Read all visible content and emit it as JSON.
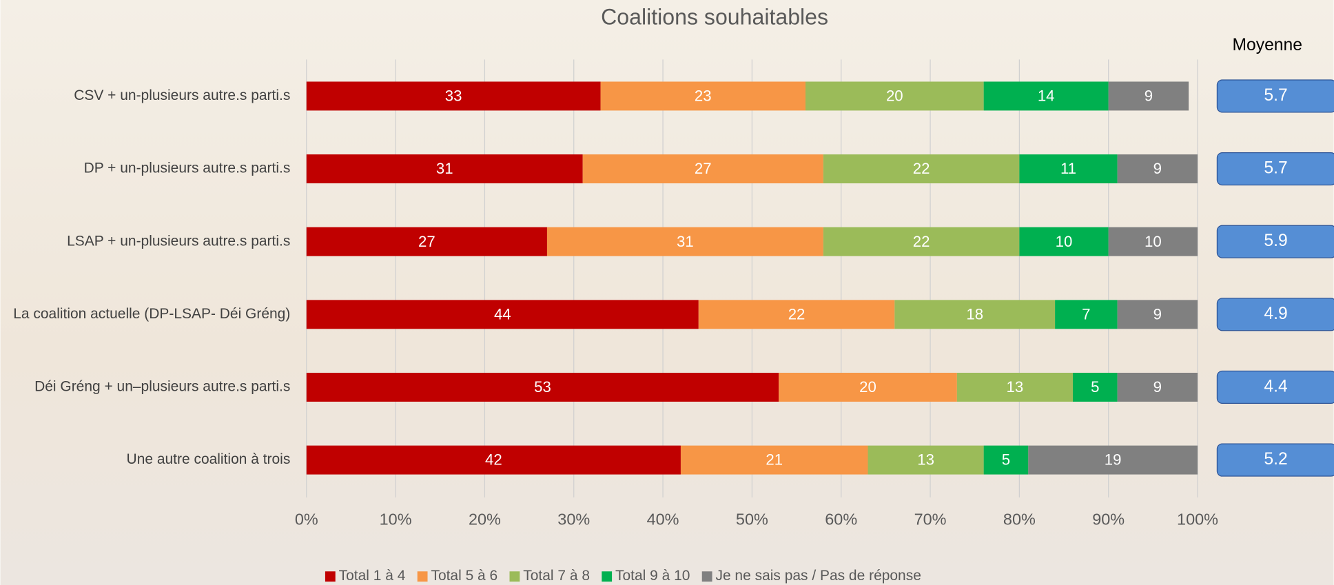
{
  "chart_data": {
    "type": "stacked-bar-horizontal",
    "title": "Coalitions souhaitables",
    "categories": [
      "CSV + un-plusieurs autre.s parti.s",
      "DP + un-plusieurs autre.s parti.s",
      "LSAP + un-plusieurs autre.s parti.s",
      "La coalition actuelle (DP-LSAP- Déi Gréng)",
      "Déi Gréng + un–plusieurs autre.s parti.s",
      "Une autre coalition à trois"
    ],
    "series": [
      {
        "name": "Total 1 à 4",
        "color": "#c00000",
        "values": [
          33,
          31,
          27,
          44,
          53,
          42
        ]
      },
      {
        "name": "Total 5 à 6",
        "color": "#f79646",
        "values": [
          23,
          27,
          31,
          22,
          20,
          21
        ]
      },
      {
        "name": "Total 7 à 8",
        "color": "#9bbb59",
        "values": [
          20,
          22,
          22,
          18,
          13,
          13
        ]
      },
      {
        "name": "Total 9 à 10",
        "color": "#00b050",
        "values": [
          14,
          11,
          10,
          7,
          5,
          5
        ]
      },
      {
        "name": "Je ne sais pas / Pas de réponse",
        "color": "#808080",
        "values": [
          9,
          9,
          10,
          9,
          9,
          19
        ]
      }
    ],
    "xlim": [
      0,
      100
    ],
    "xticks": [
      {
        "value": 0,
        "label": "0%"
      },
      {
        "value": 10,
        "label": "10%"
      },
      {
        "value": 20,
        "label": "20%"
      },
      {
        "value": 30,
        "label": "30%"
      },
      {
        "value": 40,
        "label": "40%"
      },
      {
        "value": 50,
        "label": "50%"
      },
      {
        "value": 60,
        "label": "60%"
      },
      {
        "value": 70,
        "label": "70%"
      },
      {
        "value": 80,
        "label": "80%"
      },
      {
        "value": 90,
        "label": "90%"
      },
      {
        "value": 100,
        "label": "100%"
      }
    ],
    "grid": true,
    "legend": "bottom",
    "side_title": "Moyenne",
    "side_values": [
      5.7,
      5.7,
      5.9,
      4.9,
      4.4,
      5.2
    ],
    "side_color": "#558ed5"
  }
}
